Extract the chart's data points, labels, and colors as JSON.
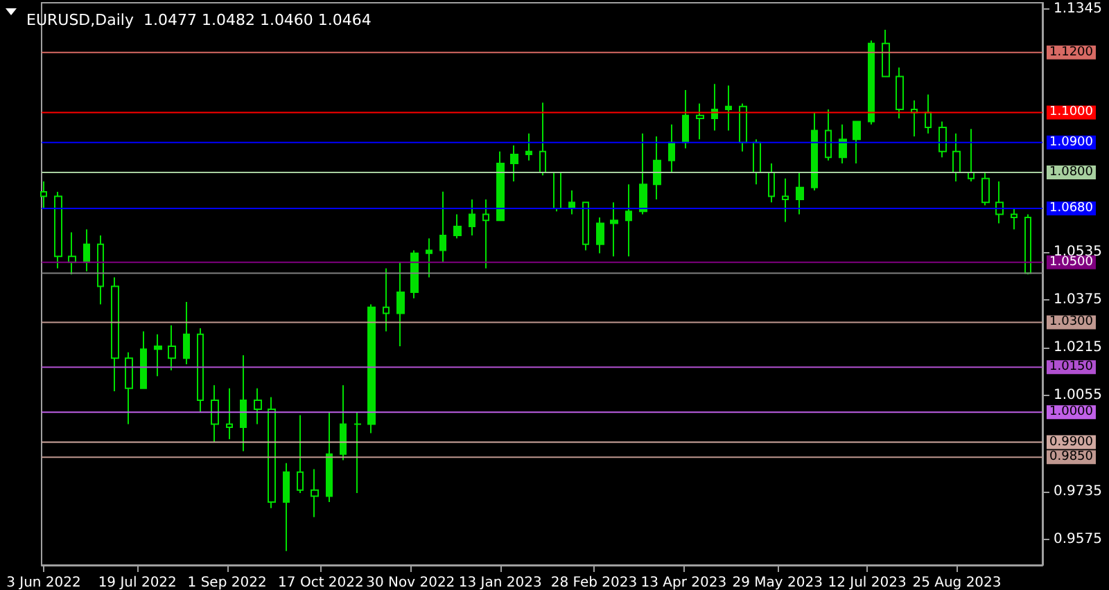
{
  "chart_data": {
    "type": "candlestick",
    "title": "EURUSD,Daily  1.0477 1.0482 1.0460 1.0464",
    "x": [
      "2022-06-03",
      "2022-06-10",
      "2022-06-17",
      "2022-06-24",
      "2022-07-01",
      "2022-07-08",
      "2022-07-15",
      "2022-07-22",
      "2022-07-29",
      "2022-08-05",
      "2022-08-12",
      "2022-08-19",
      "2022-08-26",
      "2022-09-02",
      "2022-09-09",
      "2022-09-16",
      "2022-09-23",
      "2022-09-30",
      "2022-10-07",
      "2022-10-14",
      "2022-10-21",
      "2022-10-28",
      "2022-11-04",
      "2022-11-11",
      "2022-11-18",
      "2022-11-25",
      "2022-12-02",
      "2022-12-09",
      "2022-12-16",
      "2022-12-23",
      "2022-12-30",
      "2023-01-06",
      "2023-01-13",
      "2023-01-20",
      "2023-01-27",
      "2023-02-03",
      "2023-02-10",
      "2023-02-17",
      "2023-02-24",
      "2023-03-03",
      "2023-03-10",
      "2023-03-17",
      "2023-03-24",
      "2023-03-31",
      "2023-04-07",
      "2023-04-14",
      "2023-04-21",
      "2023-04-28",
      "2023-05-05",
      "2023-05-12",
      "2023-05-19",
      "2023-05-26",
      "2023-06-02",
      "2023-06-09",
      "2023-06-16",
      "2023-06-23",
      "2023-06-30",
      "2023-07-07",
      "2023-07-14",
      "2023-07-21",
      "2023-07-28",
      "2023-08-04",
      "2023-08-11",
      "2023-08-18",
      "2023-08-25",
      "2023-09-01",
      "2023-09-08",
      "2023-09-15",
      "2023-09-22",
      "2023-09-29"
    ],
    "series": [
      {
        "color": "#00e000",
        "ohlc": [
          [
            1.0735,
            1.077,
            1.068,
            1.072
          ],
          [
            1.072,
            1.0735,
            1.048,
            1.052
          ],
          [
            1.052,
            1.06,
            1.046,
            1.05
          ],
          [
            1.05,
            1.061,
            1.047,
            1.056
          ],
          [
            1.056,
            1.059,
            1.036,
            1.042
          ],
          [
            1.042,
            1.045,
            1.007,
            1.018
          ],
          [
            1.018,
            1.02,
            0.996,
            1.008
          ],
          [
            1.008,
            1.027,
            1.008,
            1.021
          ],
          [
            1.021,
            1.026,
            1.012,
            1.022
          ],
          [
            1.022,
            1.029,
            1.014,
            1.018
          ],
          [
            1.018,
            1.0368,
            1.016,
            1.026
          ],
          [
            1.026,
            1.028,
            1.0,
            1.004
          ],
          [
            1.004,
            1.009,
            0.99,
            0.996
          ],
          [
            0.996,
            1.008,
            0.991,
            0.995
          ],
          [
            0.995,
            1.019,
            0.987,
            1.004
          ],
          [
            1.004,
            1.008,
            0.996,
            1.001
          ],
          [
            1.001,
            1.005,
            0.968,
            0.97
          ],
          [
            0.97,
            0.983,
            0.9537,
            0.98
          ],
          [
            0.98,
            0.999,
            0.973,
            0.974
          ],
          [
            0.974,
            0.981,
            0.965,
            0.972
          ],
          [
            0.972,
            1.0,
            0.97,
            0.986
          ],
          [
            0.986,
            1.009,
            0.984,
            0.996
          ],
          [
            0.996,
            1.0,
            0.973,
            0.996
          ],
          [
            0.996,
            1.036,
            0.993,
            1.035
          ],
          [
            1.035,
            1.048,
            1.027,
            1.033
          ],
          [
            1.033,
            1.05,
            1.022,
            1.04
          ],
          [
            1.04,
            1.054,
            1.038,
            1.053
          ],
          [
            1.053,
            1.058,
            1.045,
            1.054
          ],
          [
            1.054,
            1.0736,
            1.05,
            1.059
          ],
          [
            1.059,
            1.066,
            1.058,
            1.062
          ],
          [
            1.062,
            1.071,
            1.059,
            1.066
          ],
          [
            1.066,
            1.071,
            1.048,
            1.064
          ],
          [
            1.064,
            1.087,
            1.064,
            1.083
          ],
          [
            1.083,
            1.089,
            1.077,
            1.086
          ],
          [
            1.086,
            1.093,
            1.084,
            1.087
          ],
          [
            1.087,
            1.1033,
            1.079,
            1.08
          ],
          [
            1.08,
            1.08,
            1.067,
            1.068
          ],
          [
            1.068,
            1.074,
            1.066,
            1.07
          ],
          [
            1.07,
            1.07,
            1.054,
            1.056
          ],
          [
            1.056,
            1.065,
            1.053,
            1.063
          ],
          [
            1.063,
            1.07,
            1.052,
            1.064
          ],
          [
            1.064,
            1.076,
            1.052,
            1.067
          ],
          [
            1.067,
            1.093,
            1.066,
            1.076
          ],
          [
            1.076,
            1.092,
            1.071,
            1.084
          ],
          [
            1.084,
            1.096,
            1.08,
            1.09
          ],
          [
            1.09,
            1.1075,
            1.088,
            1.099
          ],
          [
            1.099,
            1.103,
            1.091,
            1.098
          ],
          [
            1.098,
            1.1095,
            1.094,
            1.101
          ],
          [
            1.101,
            1.109,
            1.094,
            1.102
          ],
          [
            1.102,
            1.103,
            1.087,
            1.09
          ],
          [
            1.09,
            1.091,
            1.076,
            1.08
          ],
          [
            1.08,
            1.083,
            1.07,
            1.072
          ],
          [
            1.072,
            1.078,
            1.0635,
            1.071
          ],
          [
            1.071,
            1.08,
            1.066,
            1.075
          ],
          [
            1.075,
            1.1,
            1.074,
            1.094
          ],
          [
            1.094,
            1.101,
            1.084,
            1.085
          ],
          [
            1.085,
            1.096,
            1.083,
            1.091
          ],
          [
            1.091,
            1.097,
            1.083,
            1.097
          ],
          [
            1.097,
            1.124,
            1.096,
            1.123
          ],
          [
            1.123,
            1.1276,
            1.112,
            1.112
          ],
          [
            1.112,
            1.115,
            1.098,
            1.101
          ],
          [
            1.101,
            1.104,
            1.092,
            1.1
          ],
          [
            1.1,
            1.106,
            1.093,
            1.095
          ],
          [
            1.095,
            1.097,
            1.085,
            1.087
          ],
          [
            1.087,
            1.093,
            1.077,
            1.08
          ],
          [
            1.08,
            1.0945,
            1.077,
            1.078
          ],
          [
            1.078,
            1.08,
            1.069,
            1.07
          ],
          [
            1.07,
            1.077,
            1.063,
            1.066
          ],
          [
            1.066,
            1.068,
            1.061,
            1.065
          ],
          [
            1.065,
            1.066,
            1.046,
            1.0464
          ]
        ]
      }
    ],
    "xlim": [
      "2022-06-02",
      "2023-10-06"
    ],
    "xticks": [
      {
        "value": "2022-06-03",
        "label": "3 Jun 2022"
      },
      {
        "value": "2022-07-19",
        "label": "19 Jul 2022"
      },
      {
        "value": "2022-09-01",
        "label": "1 Sep 2022"
      },
      {
        "value": "2022-10-17",
        "label": "17 Oct 2022"
      },
      {
        "value": "2022-11-30",
        "label": "30 Nov 2022"
      },
      {
        "value": "2023-01-13",
        "label": "13 Jan 2023"
      },
      {
        "value": "2023-02-28",
        "label": "28 Feb 2023"
      },
      {
        "value": "2023-04-13",
        "label": "13 Apr 2023"
      },
      {
        "value": "2023-05-29",
        "label": "29 May 2023"
      },
      {
        "value": "2023-07-12",
        "label": "12 Jul 2023"
      },
      {
        "value": "2023-08-25",
        "label": "25 Aug 2023"
      }
    ],
    "ylim": [
      0.949,
      1.1366
    ],
    "yticks": [
      0.9575,
      0.9735,
      1.0055,
      1.0215,
      1.0375,
      1.0535,
      1.1345
    ],
    "ref_lines": [
      {
        "axis": "y",
        "value": 1.12,
        "label": "1.1200",
        "color": "#d86a64"
      },
      {
        "axis": "y",
        "value": 1.1,
        "label": "1.1000",
        "color": "#ff0000"
      },
      {
        "axis": "y",
        "value": 1.09,
        "label": "1.0900",
        "color": "#0000ff"
      },
      {
        "axis": "y",
        "value": 1.08,
        "label": "1.0800",
        "color": "#a8d0a0"
      },
      {
        "axis": "y",
        "value": 1.068,
        "label": "1.0680",
        "color": "#0000ff"
      },
      {
        "axis": "y",
        "value": 1.05,
        "label": "1.0500",
        "color": "#800080"
      },
      {
        "axis": "y",
        "value": 1.0464,
        "label": null,
        "color": "#808080"
      },
      {
        "axis": "y",
        "value": 1.03,
        "label": "1.0300",
        "color": "#c09890"
      },
      {
        "axis": "y",
        "value": 1.015,
        "label": "1.0150",
        "color": "#b050d0"
      },
      {
        "axis": "y",
        "value": 1.0,
        "label": "1.0000",
        "color": "#c060e8"
      },
      {
        "axis": "y",
        "value": 0.99,
        "label": "0.9900",
        "color": "#d0a8a0"
      },
      {
        "axis": "y",
        "value": 0.985,
        "label": "0.9850",
        "color": "#c09890"
      }
    ],
    "grid": false
  }
}
